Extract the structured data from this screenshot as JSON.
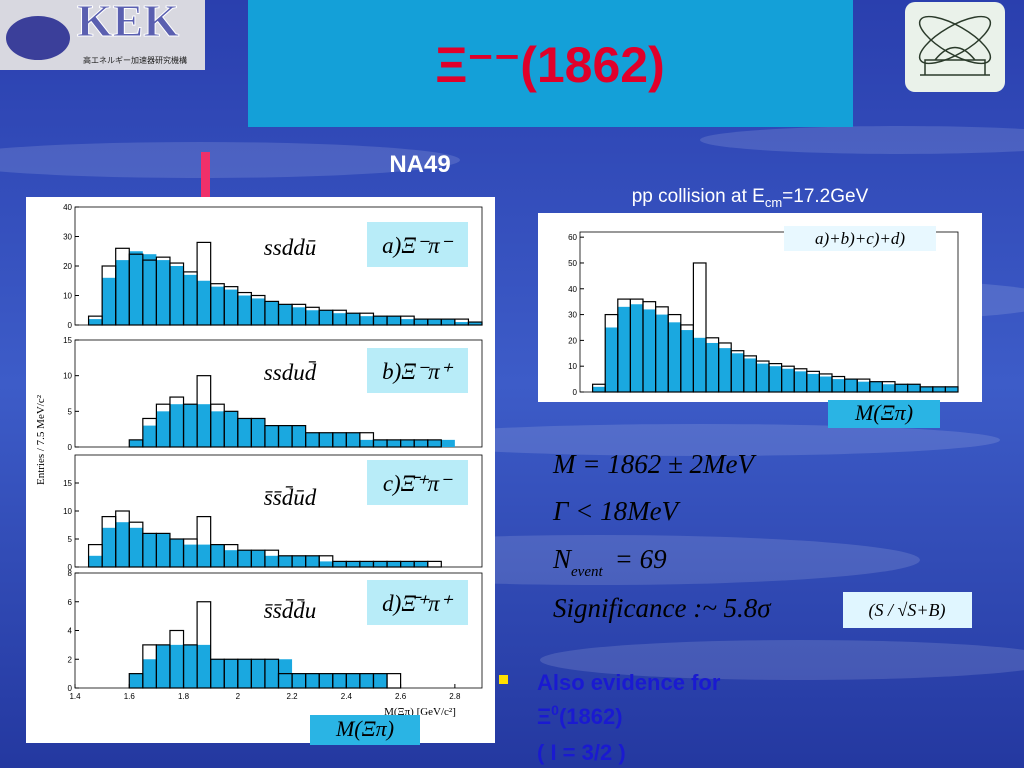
{
  "header": {
    "title": "Ξ⁻⁻(1862)",
    "logo_text": "KEK",
    "logo_subtitle": "高エネルギー加速器研究機構"
  },
  "experiment": "NA49",
  "subtitle": {
    "text": "pp collision at E",
    "sub": "cm",
    "rest": "=17.2GeV"
  },
  "left_plot": {
    "type": "histogram",
    "ylabel": "Entries / 7.5 MeV/c²",
    "xlabel": "M(Ξπ) [GeV/c²]",
    "axis_box": "M(Ξπ)",
    "xlim": [
      1.4,
      2.9
    ],
    "xticks": [
      1.4,
      1.6,
      1.8,
      2,
      2.2,
      2.4,
      2.6,
      2.8
    ],
    "bins": [
      1.4,
      1.45,
      1.5,
      1.55,
      1.6,
      1.65,
      1.7,
      1.75,
      1.8,
      1.85,
      1.9,
      1.95,
      2,
      2.05,
      2.1,
      2.15,
      2.2,
      2.25,
      2.3,
      2.35,
      2.4,
      2.45,
      2.5,
      2.55,
      2.6,
      2.65,
      2.7,
      2.75,
      2.8,
      2.85,
      2.9
    ],
    "panels": [
      {
        "label": "a)Ξ⁻π⁻",
        "quarks": "ssddū",
        "ylim": [
          0,
          40
        ],
        "yticks": [
          0,
          10,
          20,
          30,
          40
        ],
        "background": [
          0,
          2,
          16,
          22,
          25,
          24,
          22,
          20,
          17,
          15,
          13,
          12,
          10,
          9,
          8,
          7,
          6,
          5,
          5,
          4,
          4,
          3,
          3,
          3,
          2,
          2,
          2,
          2,
          1,
          1
        ],
        "data": [
          0,
          3,
          20,
          26,
          24,
          22,
          23,
          21,
          18,
          28,
          14,
          13,
          11,
          10,
          8,
          7,
          7,
          6,
          5,
          5,
          4,
          4,
          3,
          3,
          3,
          2,
          2,
          2,
          2,
          1
        ]
      },
      {
        "label": "b)Ξ⁻π⁺",
        "quarks": "ssdud̄",
        "ylim": [
          0,
          15
        ],
        "yticks": [
          0,
          5,
          10,
          15
        ],
        "background": [
          0,
          0,
          0,
          0,
          1,
          3,
          5,
          6,
          6,
          6,
          5,
          5,
          4,
          4,
          3,
          3,
          3,
          2,
          2,
          2,
          2,
          1,
          1,
          1,
          1,
          1,
          1,
          1,
          0,
          0
        ],
        "data": [
          0,
          0,
          0,
          0,
          1,
          4,
          6,
          7,
          6,
          10,
          6,
          5,
          4,
          4,
          3,
          3,
          3,
          2,
          2,
          2,
          2,
          2,
          1,
          1,
          1,
          1,
          1,
          0,
          0,
          0
        ]
      },
      {
        "label": "c)Ξ̄⁺π⁻",
        "quarks": "s̄s̄d̄ūd",
        "ylim": [
          0,
          20
        ],
        "yticks": [
          0,
          5,
          10,
          15
        ],
        "background": [
          0,
          2,
          7,
          8,
          7,
          6,
          6,
          5,
          4,
          4,
          4,
          3,
          3,
          3,
          2,
          2,
          2,
          2,
          1,
          1,
          1,
          1,
          1,
          1,
          1,
          1,
          0,
          0,
          0,
          0
        ],
        "data": [
          0,
          4,
          9,
          10,
          8,
          6,
          6,
          5,
          5,
          9,
          4,
          4,
          3,
          3,
          3,
          2,
          2,
          2,
          2,
          1,
          1,
          1,
          1,
          1,
          1,
          1,
          1,
          0,
          0,
          0
        ]
      },
      {
        "label": "d)Ξ̄⁺π⁺",
        "quarks": "s̄s̄d̄d̄u",
        "ylim": [
          0,
          8
        ],
        "yticks": [
          0,
          2,
          4,
          6,
          8
        ],
        "background": [
          0,
          0,
          0,
          0,
          1,
          2,
          3,
          3,
          3,
          3,
          2,
          2,
          2,
          2,
          2,
          2,
          1,
          1,
          1,
          1,
          1,
          1,
          1,
          0,
          0,
          0,
          0,
          0,
          0,
          0
        ],
        "data": [
          0,
          0,
          0,
          0,
          1,
          3,
          3,
          4,
          3,
          6,
          2,
          2,
          2,
          2,
          2,
          1,
          1,
          1,
          1,
          1,
          1,
          1,
          1,
          1,
          0,
          0,
          0,
          0,
          0,
          0
        ]
      }
    ]
  },
  "right_plot": {
    "type": "histogram",
    "label": "a)+b)+c)+d)",
    "axis_box": "M(Ξπ)",
    "xlim": [
      1.4,
      2.9
    ],
    "ylim": [
      0,
      62
    ],
    "yticks": [
      0,
      10,
      20,
      30,
      40,
      50,
      60
    ],
    "bins": [
      1.4,
      1.45,
      1.5,
      1.55,
      1.6,
      1.65,
      1.7,
      1.75,
      1.8,
      1.85,
      1.9,
      1.95,
      2,
      2.05,
      2.1,
      2.15,
      2.2,
      2.25,
      2.3,
      2.35,
      2.4,
      2.45,
      2.5,
      2.55,
      2.6,
      2.65,
      2.7,
      2.75,
      2.8,
      2.85,
      2.9
    ],
    "background": [
      0,
      2,
      25,
      33,
      34,
      32,
      30,
      27,
      24,
      21,
      19,
      17,
      15,
      13,
      11,
      10,
      9,
      8,
      7,
      6,
      5,
      5,
      4,
      4,
      3,
      3,
      3,
      2,
      2,
      2
    ],
    "data": [
      0,
      3,
      30,
      36,
      36,
      35,
      33,
      30,
      26,
      50,
      21,
      19,
      16,
      14,
      12,
      11,
      10,
      9,
      8,
      7,
      6,
      5,
      5,
      4,
      4,
      3,
      3,
      2,
      2,
      2
    ]
  },
  "results": {
    "mass": "M = 1862 ± 2MeV",
    "width": "Γ < 18MeV",
    "n_symbol": "N",
    "n_sub": "event",
    "n_value": "= 69",
    "significance": "Significance :~ 5.8σ",
    "significance_def": "(S / √S+B)"
  },
  "bullet": {
    "line1": "Also evidence for",
    "line2_base": "Ξ",
    "line2_sup": "0",
    "line2_rest": "(1862)",
    "line3": "( I = 3/2 )"
  }
}
